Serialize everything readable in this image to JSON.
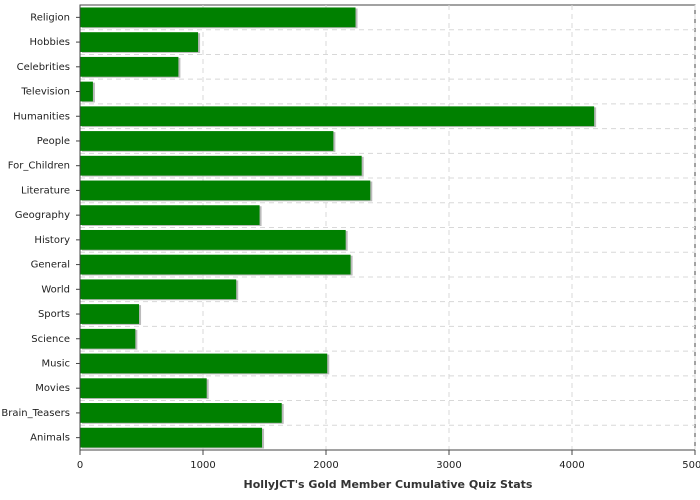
{
  "chart_data": {
    "type": "hbar",
    "title": "HollyJCT's Gold Member Cumulative Quiz Stats",
    "categories": [
      "Religion",
      "Hobbies",
      "Celebrities",
      "Television",
      "Humanities",
      "People",
      "For_Children",
      "Literature",
      "Geography",
      "History",
      "General",
      "World",
      "Sports",
      "Science",
      "Music",
      "Movies",
      "Brain_Teasers",
      "Animals"
    ],
    "values": [
      2240,
      960,
      800,
      105,
      4180,
      2060,
      2290,
      2360,
      1460,
      2160,
      2200,
      1270,
      480,
      450,
      2010,
      1030,
      1640,
      1480
    ],
    "color": "#008000",
    "xlim": [
      0,
      5000
    ],
    "xticks": [
      0,
      1000,
      2000,
      3000,
      4000,
      5000
    ],
    "grid": true
  }
}
